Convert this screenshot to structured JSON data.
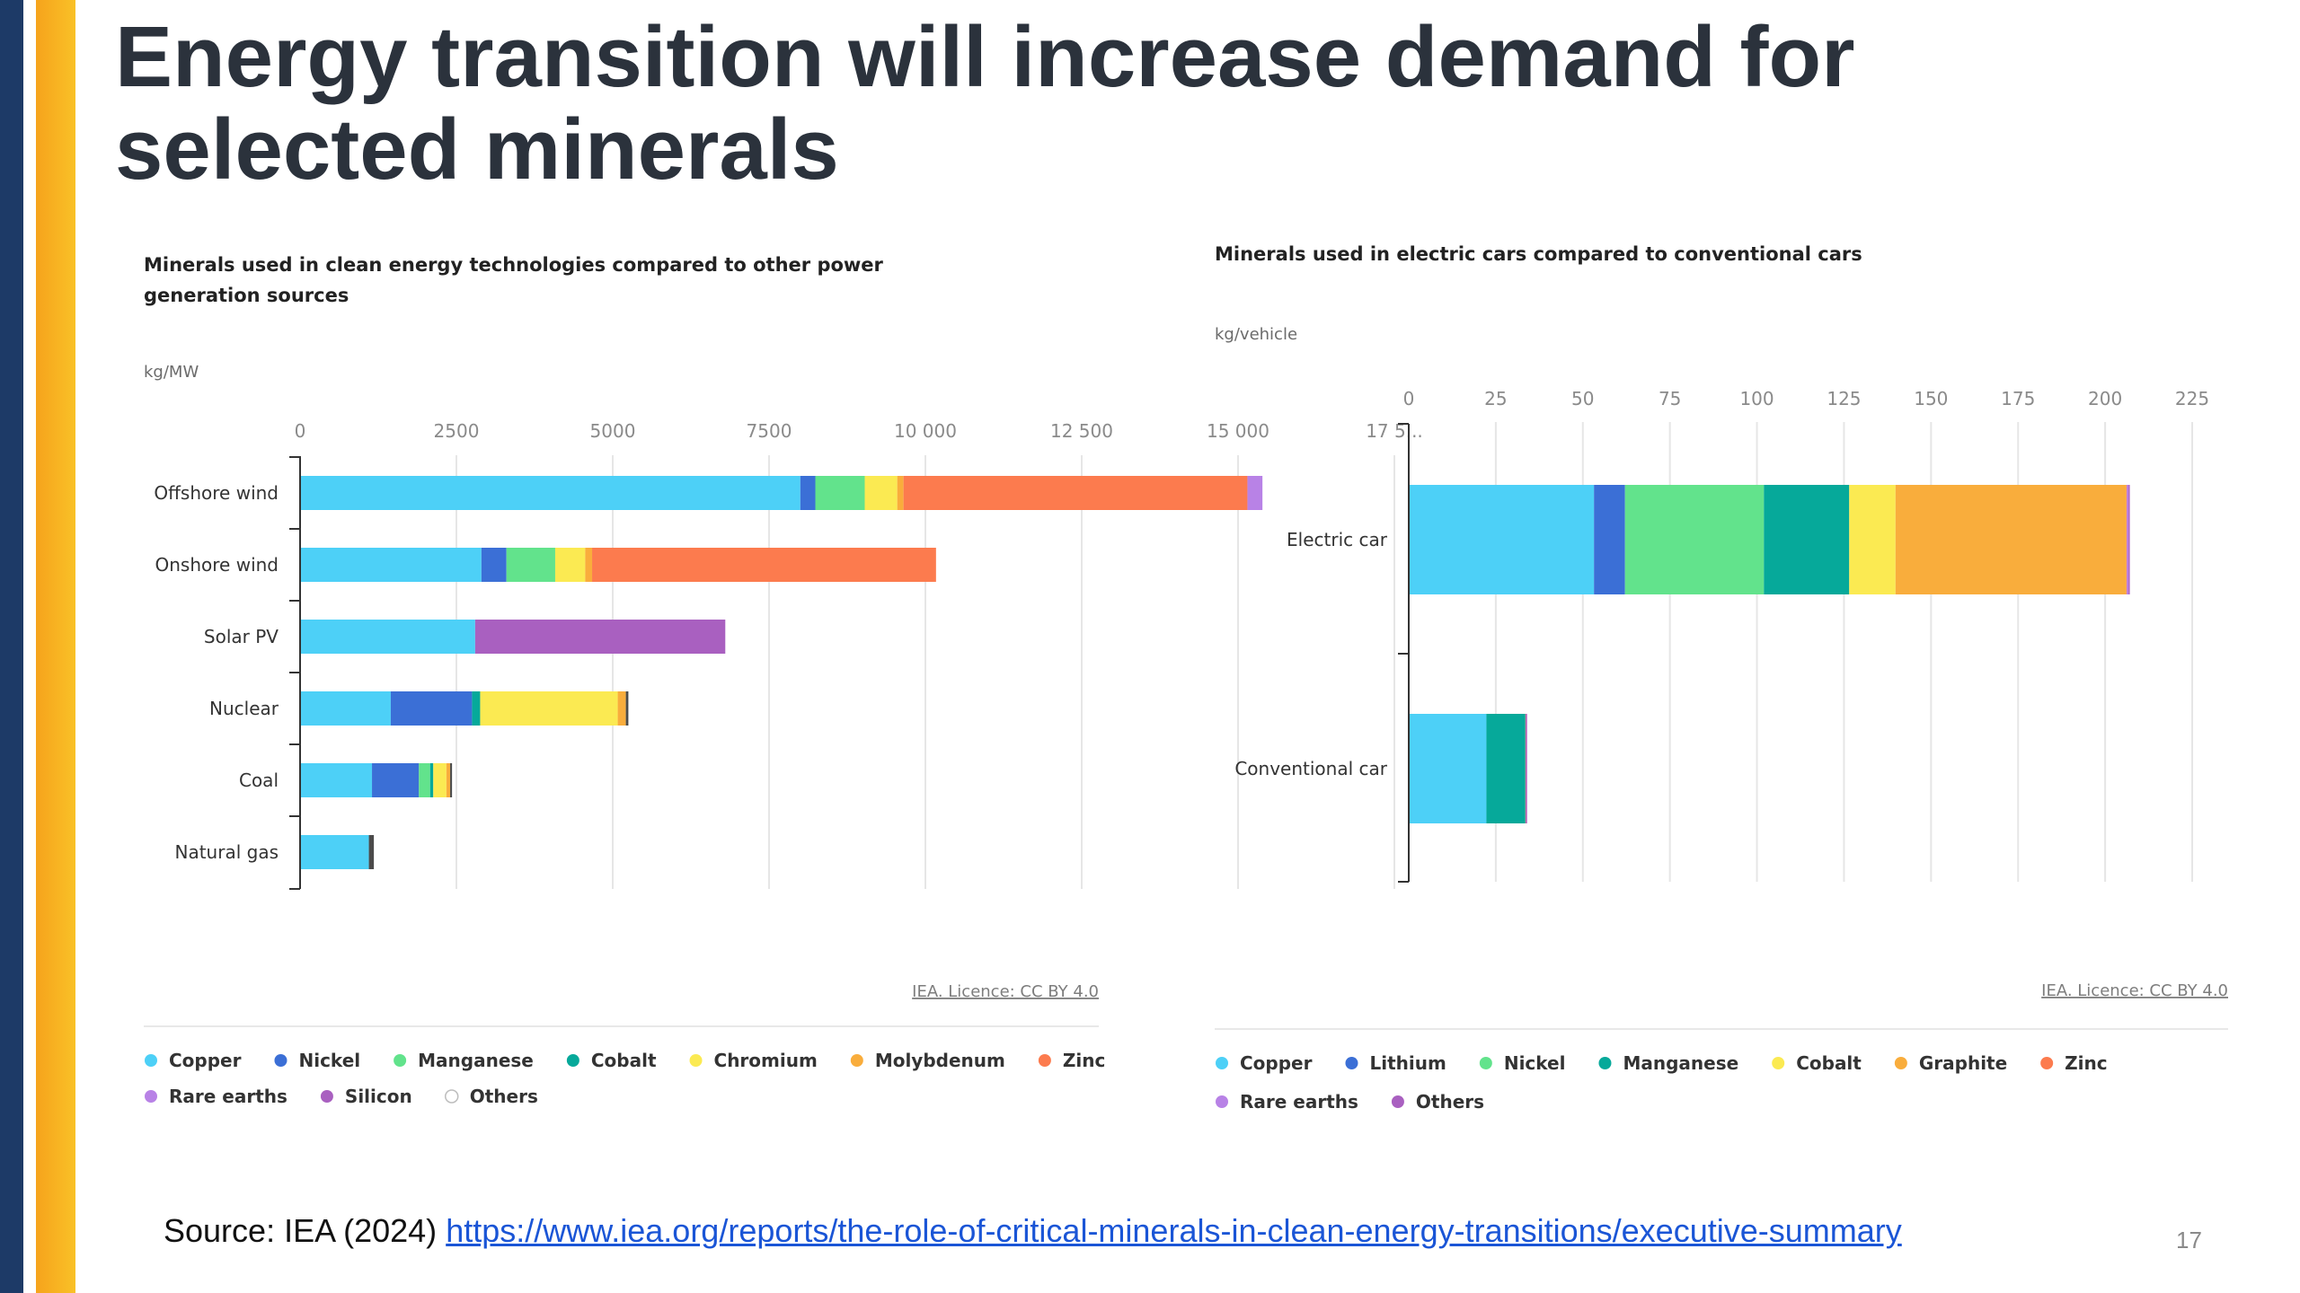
{
  "slide": {
    "title": "Energy transition will increase demand for selected minerals",
    "source_prefix": "Source: IEA (2024) ",
    "source_link": "https://www.iea.org/reports/the-role-of-critical-minerals-in-clean-energy-transitions/executive-summary",
    "page_number": "17"
  },
  "chart_data": [
    {
      "type": "bar",
      "orientation": "horizontal",
      "stacked": true,
      "title": "Minerals used in clean energy technologies compared to other power generation sources",
      "title_lines": [
        "Minerals used in clean energy technologies compared to other power",
        "generation sources"
      ],
      "unit": "kg/MW",
      "xlim": [
        0,
        17500
      ],
      "x_ticks": [
        0,
        2500,
        5000,
        7500,
        10000,
        12500,
        15000,
        17500
      ],
      "x_tick_labels": [
        "0",
        "2500",
        "5000",
        "7500",
        "10 000",
        "12 500",
        "15 000",
        "17 5..."
      ],
      "categories": [
        "Offshore wind",
        "Onshore wind",
        "Solar PV",
        "Nuclear",
        "Coal",
        "Natural gas"
      ],
      "series": [
        {
          "name": "Copper",
          "color": "#4dd0f7",
          "values": [
            8000,
            2900,
            2800,
            1450,
            1150,
            1100
          ]
        },
        {
          "name": "Nickel",
          "color": "#3b6fd6",
          "values": [
            240,
            400,
            0,
            1300,
            750,
            0
          ]
        },
        {
          "name": "Manganese",
          "color": "#62e38c",
          "values": [
            790,
            780,
            0,
            0,
            180,
            0
          ]
        },
        {
          "name": "Cobalt",
          "color": "#06a99a",
          "values": [
            0,
            0,
            0,
            130,
            50,
            0
          ]
        },
        {
          "name": "Chromium",
          "color": "#fbea52",
          "values": [
            520,
            480,
            0,
            2200,
            210,
            0
          ]
        },
        {
          "name": "Molybdenum",
          "color": "#f9ad3c",
          "values": [
            100,
            110,
            0,
            130,
            60,
            0
          ]
        },
        {
          "name": "Zinc",
          "color": "#fc7b4e",
          "values": [
            5500,
            5500,
            0,
            0,
            0,
            0
          ]
        },
        {
          "name": "Rare earths",
          "color": "#b882e6",
          "values": [
            240,
            0,
            0,
            0,
            0,
            0
          ]
        },
        {
          "name": "Silicon",
          "color": "#a960c0",
          "values": [
            0,
            0,
            4000,
            0,
            0,
            0
          ]
        },
        {
          "name": "Others",
          "color": "#4b4b4b",
          "values": [
            0,
            0,
            0,
            40,
            30,
            80
          ]
        }
      ],
      "legend": [
        {
          "label": "Copper",
          "color": "#4dd0f7"
        },
        {
          "label": "Nickel",
          "color": "#3b6fd6"
        },
        {
          "label": "Manganese",
          "color": "#62e38c"
        },
        {
          "label": "Cobalt",
          "color": "#06a99a"
        },
        {
          "label": "Chromium",
          "color": "#fbea52"
        },
        {
          "label": "Molybdenum",
          "color": "#f9ad3c"
        },
        {
          "label": "Zinc",
          "color": "#fc7b4e"
        },
        {
          "label": "Rare earths",
          "color": "#b882e6"
        },
        {
          "label": "Silicon",
          "color": "#a960c0"
        },
        {
          "label": "Others",
          "color": "#ffffff",
          "outline": "#bdbdbd"
        }
      ],
      "legend_placement": "bottom",
      "grid": true,
      "licence": "IEA. Licence: CC BY 4.0"
    },
    {
      "type": "bar",
      "orientation": "horizontal",
      "stacked": true,
      "title": "Minerals used in electric cars compared to conventional cars",
      "title_lines": [
        "Minerals used in electric cars compared to conventional cars"
      ],
      "unit": "kg/vehicle",
      "xlim": [
        0,
        225
      ],
      "x_ticks": [
        0,
        25,
        50,
        75,
        100,
        125,
        150,
        175,
        200,
        225
      ],
      "x_tick_labels": [
        "0",
        "25",
        "50",
        "75",
        "100",
        "125",
        "150",
        "175",
        "200",
        "225"
      ],
      "categories": [
        "Electric car",
        "Conventional car"
      ],
      "series": [
        {
          "name": "Copper",
          "color": "#4dd0f7",
          "values": [
            53.2,
            22.3
          ]
        },
        {
          "name": "Lithium",
          "color": "#3b6fd6",
          "values": [
            8.9,
            0
          ]
        },
        {
          "name": "Nickel",
          "color": "#62e38c",
          "values": [
            39.9,
            0
          ]
        },
        {
          "name": "Manganese",
          "color": "#06a99a",
          "values": [
            24.5,
            11.2
          ]
        },
        {
          "name": "Cobalt",
          "color": "#fbea52",
          "values": [
            13.3,
            0
          ]
        },
        {
          "name": "Graphite",
          "color": "#f9ad3c",
          "values": [
            66.3,
            0
          ]
        },
        {
          "name": "Zinc",
          "color": "#fc7b4e",
          "values": [
            0.1,
            0.1
          ]
        },
        {
          "name": "Rare earths",
          "color": "#b882e6",
          "values": [
            0.5,
            0
          ]
        },
        {
          "name": "Others",
          "color": "#a960c0",
          "values": [
            0.3,
            0.3
          ]
        }
      ],
      "legend": [
        {
          "label": "Copper",
          "color": "#4dd0f7"
        },
        {
          "label": "Lithium",
          "color": "#3b6fd6"
        },
        {
          "label": "Nickel",
          "color": "#62e38c"
        },
        {
          "label": "Manganese",
          "color": "#06a99a"
        },
        {
          "label": "Cobalt",
          "color": "#fbea52"
        },
        {
          "label": "Graphite",
          "color": "#f9ad3c"
        },
        {
          "label": "Zinc",
          "color": "#fc7b4e"
        },
        {
          "label": "Rare earths",
          "color": "#b882e6"
        },
        {
          "label": "Others",
          "color": "#a960c0"
        }
      ],
      "legend_placement": "bottom",
      "grid": true,
      "licence": "IEA. Licence: CC BY 4.0"
    }
  ]
}
